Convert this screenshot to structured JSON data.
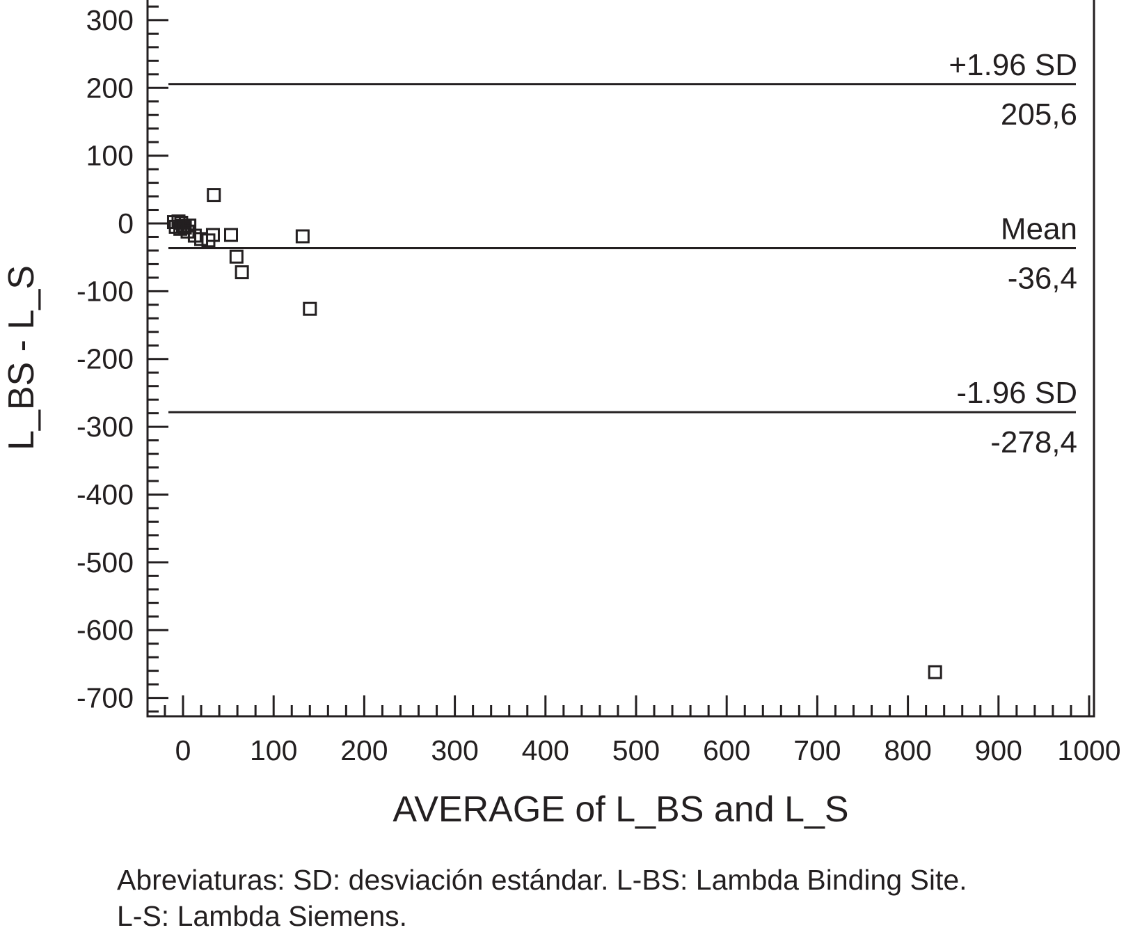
{
  "chart_data": {
    "type": "scatter",
    "title": "",
    "xlabel": "AVERAGE of L_BS and L_S",
    "ylabel": "L_BS - L_S",
    "xlim": [
      -40,
      1000
    ],
    "ylim": [
      -730,
      335
    ],
    "x_ticks": [
      0,
      100,
      200,
      300,
      400,
      500,
      600,
      700,
      800,
      900,
      1000
    ],
    "y_ticks": [
      300,
      200,
      100,
      0,
      -100,
      -200,
      -300,
      -400,
      -500,
      -600,
      -700
    ],
    "x_tick_labels": [
      "0",
      "100",
      "200",
      "300",
      "400",
      "500",
      "600",
      "700",
      "800",
      "900",
      "1000"
    ],
    "y_tick_labels": [
      "300",
      "200",
      "100",
      "0",
      "-100",
      "-200",
      "-300",
      "-400",
      "-500",
      "-600",
      "-700"
    ],
    "grid": false,
    "marker": "open-square",
    "points": [
      {
        "x": -10,
        "y": 2
      },
      {
        "x": -8,
        "y": -5
      },
      {
        "x": -5,
        "y": 3
      },
      {
        "x": -3,
        "y": -8
      },
      {
        "x": -2,
        "y": 1
      },
      {
        "x": 0,
        "y": -3
      },
      {
        "x": 2,
        "y": -6
      },
      {
        "x": 5,
        "y": -12
      },
      {
        "x": 7,
        "y": -3
      },
      {
        "x": 13,
        "y": -18
      },
      {
        "x": 20,
        "y": -23
      },
      {
        "x": 28,
        "y": -25
      },
      {
        "x": 33,
        "y": -17
      },
      {
        "x": 34,
        "y": 42
      },
      {
        "x": 53,
        "y": -17
      },
      {
        "x": 59,
        "y": -49
      },
      {
        "x": 65,
        "y": -72
      },
      {
        "x": 132,
        "y": -19
      },
      {
        "x": 140,
        "y": -126
      },
      {
        "x": 830,
        "y": -662
      }
    ],
    "reference_lines": [
      {
        "name": "+1.96 SD",
        "value": 205.6,
        "value_label": "205,6"
      },
      {
        "name": "Mean",
        "value": -36.4,
        "value_label": "-36,4"
      },
      {
        "name": "-1.96 SD",
        "value": -278.4,
        "value_label": "-278,4"
      }
    ]
  },
  "caption": {
    "line1": "Abreviaturas: SD: desviación estándar. L-BS: Lambda Binding Site.",
    "line2": "L-S: Lambda Siemens."
  },
  "colors": {
    "ink": "#231f20",
    "background": "#ffffff"
  }
}
